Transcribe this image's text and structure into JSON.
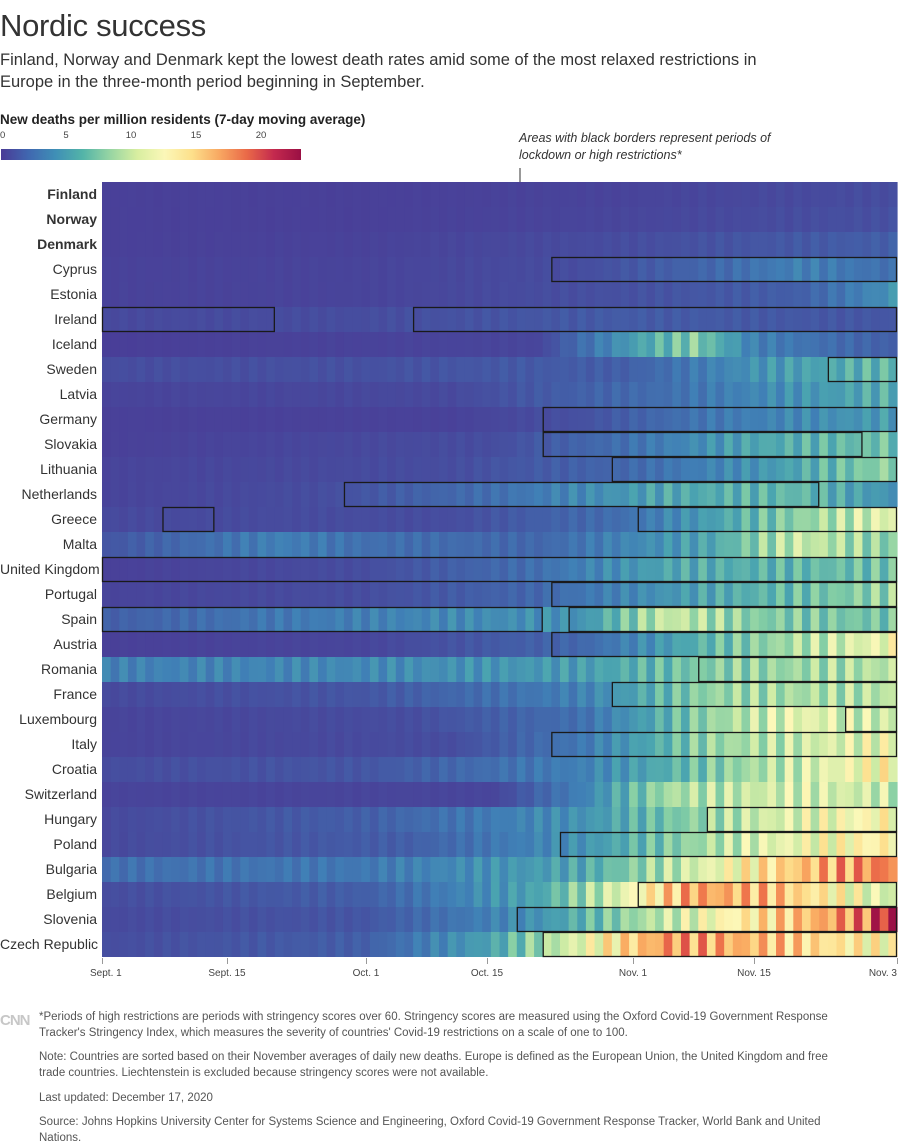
{
  "header": {
    "title": "Nordic success",
    "subtitle": "Finland, Norway and Denmark kept the lowest death rates amid some of the most relaxed restrictions in Europe in the three-month period beginning in September."
  },
  "legend": {
    "title": "New deaths per million residents (7-day moving average)",
    "ticks": [
      "0",
      "5",
      "10",
      "15",
      "20"
    ],
    "max_value": 23
  },
  "annotation": {
    "text": "Areas with black borders represent periods of lockdown or high restrictions*"
  },
  "x_axis": {
    "ticks": [
      {
        "label": "Sept. 1",
        "day": 0
      },
      {
        "label": "Sept. 15",
        "day": 14
      },
      {
        "label": "Oct. 1",
        "day": 30
      },
      {
        "label": "Oct. 15",
        "day": 44
      },
      {
        "label": "Nov. 1",
        "day": 61
      },
      {
        "label": "Nov. 15",
        "day": 75
      },
      {
        "label": "Nov. 3",
        "day": 91
      }
    ]
  },
  "chart_data": {
    "type": "heatmap",
    "title": "Nordic success",
    "value_label": "New deaths per million residents (7-day moving average)",
    "color_range": [
      0,
      23
    ],
    "x_start": "Sept. 1",
    "x_end": "Nov. 3",
    "num_days": 92,
    "rows": [
      {
        "name": "Finland",
        "bold": true,
        "keypoints": [
          [
            0,
            0.3
          ],
          [
            30,
            0.3
          ],
          [
            60,
            0.5
          ],
          [
            91,
            1.0
          ]
        ],
        "restrictions": []
      },
      {
        "name": "Norway",
        "bold": true,
        "keypoints": [
          [
            0,
            0.3
          ],
          [
            30,
            0.3
          ],
          [
            60,
            0.6
          ],
          [
            91,
            1.2
          ]
        ],
        "restrictions": []
      },
      {
        "name": "Denmark",
        "bold": true,
        "keypoints": [
          [
            0,
            0.3
          ],
          [
            30,
            0.4
          ],
          [
            60,
            1.0
          ],
          [
            91,
            2.0
          ]
        ],
        "restrictions": []
      },
      {
        "name": "Cyprus",
        "bold": false,
        "keypoints": [
          [
            0,
            0.4
          ],
          [
            30,
            0.5
          ],
          [
            55,
            1.0
          ],
          [
            70,
            2.5
          ],
          [
            80,
            4.0
          ],
          [
            91,
            3.0
          ]
        ],
        "restrictions": [
          [
            52,
            91
          ]
        ]
      },
      {
        "name": "Estonia",
        "bold": false,
        "keypoints": [
          [
            0,
            0.4
          ],
          [
            30,
            0.5
          ],
          [
            60,
            1.2
          ],
          [
            80,
            2.0
          ],
          [
            91,
            5.0
          ]
        ],
        "restrictions": []
      },
      {
        "name": "Ireland",
        "bold": false,
        "keypoints": [
          [
            0,
            0.8
          ],
          [
            30,
            1.0
          ],
          [
            60,
            1.8
          ],
          [
            91,
            1.5
          ]
        ],
        "restrictions": [
          [
            0,
            19
          ],
          [
            36,
            91
          ]
        ]
      },
      {
        "name": "Iceland",
        "bold": false,
        "keypoints": [
          [
            0,
            0.2
          ],
          [
            50,
            0.6
          ],
          [
            62,
            6.0
          ],
          [
            68,
            8.0
          ],
          [
            75,
            4.0
          ],
          [
            91,
            2.0
          ]
        ],
        "restrictions": []
      },
      {
        "name": "Sweden",
        "bold": false,
        "keypoints": [
          [
            0,
            1.0
          ],
          [
            30,
            1.2
          ],
          [
            60,
            2.0
          ],
          [
            75,
            5.0
          ],
          [
            91,
            7.0
          ]
        ],
        "restrictions": [
          [
            84,
            91
          ]
        ]
      },
      {
        "name": "Latvia",
        "bold": false,
        "keypoints": [
          [
            0,
            0.5
          ],
          [
            40,
            0.8
          ],
          [
            65,
            3.0
          ],
          [
            80,
            5.0
          ],
          [
            91,
            6.5
          ]
        ],
        "restrictions": []
      },
      {
        "name": "Germany",
        "bold": false,
        "keypoints": [
          [
            0,
            0.3
          ],
          [
            40,
            0.4
          ],
          [
            55,
            1.2
          ],
          [
            70,
            3.5
          ],
          [
            91,
            5.5
          ]
        ],
        "restrictions": [
          [
            51,
            91
          ]
        ]
      },
      {
        "name": "Slovakia",
        "bold": false,
        "keypoints": [
          [
            0,
            0.3
          ],
          [
            45,
            1.0
          ],
          [
            60,
            3.0
          ],
          [
            75,
            6.0
          ],
          [
            91,
            7.5
          ]
        ],
        "restrictions": [
          [
            51,
            87
          ]
        ]
      },
      {
        "name": "Lithuania",
        "bold": false,
        "keypoints": [
          [
            0,
            0.5
          ],
          [
            40,
            1.0
          ],
          [
            60,
            2.5
          ],
          [
            75,
            5.0
          ],
          [
            91,
            8.5
          ]
        ],
        "restrictions": [
          [
            59,
            91
          ]
        ]
      },
      {
        "name": "Netherlands",
        "bold": false,
        "keypoints": [
          [
            0,
            0.5
          ],
          [
            25,
            1.0
          ],
          [
            45,
            3.0
          ],
          [
            65,
            6.0
          ],
          [
            80,
            7.0
          ],
          [
            91,
            5.0
          ]
        ],
        "restrictions": [
          [
            28,
            82
          ]
        ]
      },
      {
        "name": "Greece",
        "bold": false,
        "keypoints": [
          [
            0,
            0.8
          ],
          [
            40,
            1.0
          ],
          [
            60,
            3.0
          ],
          [
            75,
            7.0
          ],
          [
            91,
            11.0
          ]
        ],
        "restrictions": [
          [
            7,
            12
          ],
          [
            62,
            91
          ]
        ]
      },
      {
        "name": "Malta",
        "bold": false,
        "keypoints": [
          [
            0,
            1.5
          ],
          [
            20,
            4.0
          ],
          [
            30,
            3.0
          ],
          [
            50,
            2.5
          ],
          [
            70,
            6.0
          ],
          [
            80,
            10.0
          ],
          [
            91,
            8.0
          ]
        ],
        "restrictions": []
      },
      {
        "name": "United Kingdom",
        "bold": false,
        "keypoints": [
          [
            0,
            0.3
          ],
          [
            30,
            1.0
          ],
          [
            50,
            3.0
          ],
          [
            65,
            6.0
          ],
          [
            91,
            7.5
          ]
        ],
        "restrictions": [
          [
            0,
            91
          ]
        ]
      },
      {
        "name": "Portugal",
        "bold": false,
        "keypoints": [
          [
            0,
            0.5
          ],
          [
            30,
            1.0
          ],
          [
            50,
            2.5
          ],
          [
            70,
            6.0
          ],
          [
            91,
            8.5
          ]
        ],
        "restrictions": [
          [
            52,
            91
          ]
        ]
      },
      {
        "name": "Spain",
        "bold": false,
        "keypoints": [
          [
            0,
            2.0
          ],
          [
            20,
            3.5
          ],
          [
            40,
            4.5
          ],
          [
            55,
            5.0
          ],
          [
            65,
            10.0
          ],
          [
            75,
            8.0
          ],
          [
            91,
            7.5
          ]
        ],
        "restrictions": [
          [
            0,
            50
          ],
          [
            54,
            91
          ]
        ]
      },
      {
        "name": "Austria",
        "bold": false,
        "keypoints": [
          [
            0,
            0.3
          ],
          [
            30,
            0.6
          ],
          [
            55,
            2.5
          ],
          [
            70,
            7.0
          ],
          [
            91,
            11.5
          ]
        ],
        "restrictions": [
          [
            52,
            91
          ]
        ]
      },
      {
        "name": "Romania",
        "bold": false,
        "keypoints": [
          [
            0,
            4.0
          ],
          [
            30,
            4.5
          ],
          [
            55,
            5.5
          ],
          [
            70,
            8.0
          ],
          [
            91,
            9.5
          ]
        ],
        "restrictions": [
          [
            69,
            91
          ]
        ]
      },
      {
        "name": "France",
        "bold": false,
        "keypoints": [
          [
            0,
            0.8
          ],
          [
            30,
            1.5
          ],
          [
            55,
            4.0
          ],
          [
            70,
            8.5
          ],
          [
            91,
            9.5
          ]
        ],
        "restrictions": [
          [
            59,
            91
          ]
        ]
      },
      {
        "name": "Luxembourg",
        "bold": false,
        "keypoints": [
          [
            0,
            0.5
          ],
          [
            35,
            1.0
          ],
          [
            55,
            3.0
          ],
          [
            70,
            8.5
          ],
          [
            80,
            11.0
          ],
          [
            91,
            10.0
          ]
        ],
        "restrictions": [
          [
            86,
            91
          ]
        ]
      },
      {
        "name": "Italy",
        "bold": false,
        "keypoints": [
          [
            0,
            0.5
          ],
          [
            40,
            1.0
          ],
          [
            55,
            3.5
          ],
          [
            70,
            8.5
          ],
          [
            91,
            11.5
          ]
        ],
        "restrictions": [
          [
            52,
            91
          ]
        ]
      },
      {
        "name": "Croatia",
        "bold": false,
        "keypoints": [
          [
            0,
            1.0
          ],
          [
            30,
            1.5
          ],
          [
            55,
            4.0
          ],
          [
            75,
            9.0
          ],
          [
            91,
            12.5
          ]
        ],
        "restrictions": []
      },
      {
        "name": "Switzerland",
        "bold": false,
        "keypoints": [
          [
            0,
            0.5
          ],
          [
            45,
            0.6
          ],
          [
            55,
            4.0
          ],
          [
            65,
            9.0
          ],
          [
            80,
            10.5
          ],
          [
            91,
            10.0
          ]
        ],
        "restrictions": []
      },
      {
        "name": "Hungary",
        "bold": false,
        "keypoints": [
          [
            0,
            0.8
          ],
          [
            30,
            2.0
          ],
          [
            55,
            5.0
          ],
          [
            75,
            10.0
          ],
          [
            91,
            12.5
          ]
        ],
        "restrictions": [
          [
            70,
            91
          ]
        ]
      },
      {
        "name": "Poland",
        "bold": false,
        "keypoints": [
          [
            0,
            0.8
          ],
          [
            35,
            2.0
          ],
          [
            55,
            5.0
          ],
          [
            75,
            10.5
          ],
          [
            91,
            13.0
          ]
        ],
        "restrictions": [
          [
            53,
            91
          ]
        ]
      },
      {
        "name": "Bulgaria",
        "bold": false,
        "keypoints": [
          [
            0,
            3.0
          ],
          [
            30,
            3.5
          ],
          [
            55,
            6.0
          ],
          [
            70,
            11.0
          ],
          [
            80,
            15.0
          ],
          [
            91,
            18.0
          ]
        ],
        "restrictions": []
      },
      {
        "name": "Belgium",
        "bold": false,
        "keypoints": [
          [
            0,
            1.0
          ],
          [
            30,
            2.0
          ],
          [
            50,
            6.0
          ],
          [
            60,
            11.0
          ],
          [
            68,
            16.5
          ],
          [
            78,
            15.0
          ],
          [
            91,
            10.0
          ]
        ],
        "restrictions": [
          [
            62,
            91
          ]
        ]
      },
      {
        "name": "Slovenia",
        "bold": false,
        "keypoints": [
          [
            0,
            0.8
          ],
          [
            30,
            1.5
          ],
          [
            50,
            5.0
          ],
          [
            65,
            10.0
          ],
          [
            80,
            15.0
          ],
          [
            88,
            18.0
          ],
          [
            91,
            23.0
          ]
        ],
        "restrictions": [
          [
            48,
            91
          ]
        ]
      },
      {
        "name": "Czech Republic",
        "bold": false,
        "keypoints": [
          [
            0,
            1.0
          ],
          [
            30,
            2.0
          ],
          [
            45,
            6.0
          ],
          [
            55,
            11.0
          ],
          [
            65,
            17.0
          ],
          [
            75,
            15.5
          ],
          [
            91,
            12.0
          ]
        ],
        "restrictions": [
          [
            51,
            91
          ]
        ]
      }
    ]
  },
  "footnotes": {
    "logo_text": "CNN",
    "stringency": "*Periods of high restrictions are periods with stringency scores over 60. Stringency scores are measured using the Oxford Covid-19 Government Response Tracker's Stringency Index, which measures the severity of countries' Covid-19 restrictions on a scale of one to 100.",
    "note": "Note: Countries are sorted based on their November averages of daily new deaths. Europe is defined as the European Union, the United Kingdom and free trade countries. Liechtenstein is excluded because stringency scores were not available.",
    "updated": "Last updated: December 17, 2020",
    "source": "Source: Johns Hopkins University Center for Systems Science and Engineering, Oxford Covid-19 Government Response Tracker, World Bank and United Nations."
  }
}
